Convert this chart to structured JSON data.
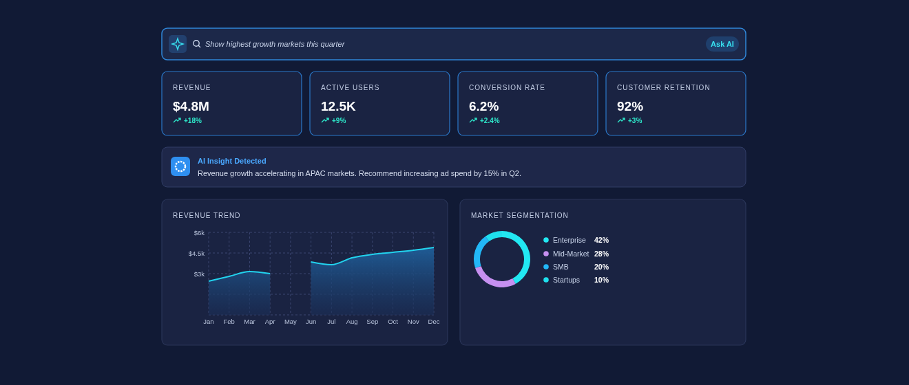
{
  "chart_data": [
    {
      "type": "other",
      "annotations": [
        "Show highest growth markets this quarter",
        "Ask AI"
      ]
    },
    {
      "type": "other",
      "categories": [
        "REVENUE",
        "ACTIVE USERS",
        "CONVERSION RATE",
        "CUSTOMER RETENTION"
      ],
      "values": [
        4.8,
        12.5,
        6.2,
        92
      ],
      "value_labels": [
        "$4.8M",
        "12.5K",
        "6.2%",
        "92%"
      ],
      "annotations": [
        "+18%",
        "+9%",
        "+2.4%",
        "+3%"
      ]
    },
    {
      "type": "other",
      "title": "AI Insight Detected",
      "annotations": [
        "Revenue growth accelerating in APAC markets. Recommend increasing ad spend by 15% in Q2."
      ]
    },
    {
      "type": "area",
      "title": "REVENUE TREND",
      "categories": [
        "Jan",
        "Feb",
        "Mar",
        "Apr",
        "May",
        "Jun",
        "Jul",
        "Aug",
        "Sep",
        "Oct",
        "Nov",
        "Dec"
      ],
      "values": [
        2450,
        2800,
        3150,
        3000,
        null,
        3850,
        3650,
        4150,
        4400,
        4550,
        4700,
        4900
      ],
      "color": "#22d3ee",
      "ylim": [
        0,
        6000
      ],
      "yticks": [
        {
          "value": 0,
          "label": null
        },
        {
          "value": 1500,
          "label": null
        },
        {
          "value": 3000,
          "label": "$3k"
        },
        {
          "value": 4500,
          "label": "$4.5k"
        },
        {
          "value": 6000,
          "label": "$6k"
        }
      ],
      "grid": true
    },
    {
      "type": "donut",
      "title": "MARKET SEGMENTATION",
      "categories": [
        "Enterprise",
        "Mid-Market",
        "SMB",
        "Startups"
      ],
      "values": [
        42,
        28,
        20,
        10
      ],
      "value_labels": [
        "42%",
        "28%",
        "20%",
        "10%"
      ],
      "colors": [
        "#22e8f2",
        "#c690f0",
        "#22b8f8",
        "#1fe0ee"
      ],
      "legend": "right"
    }
  ]
}
